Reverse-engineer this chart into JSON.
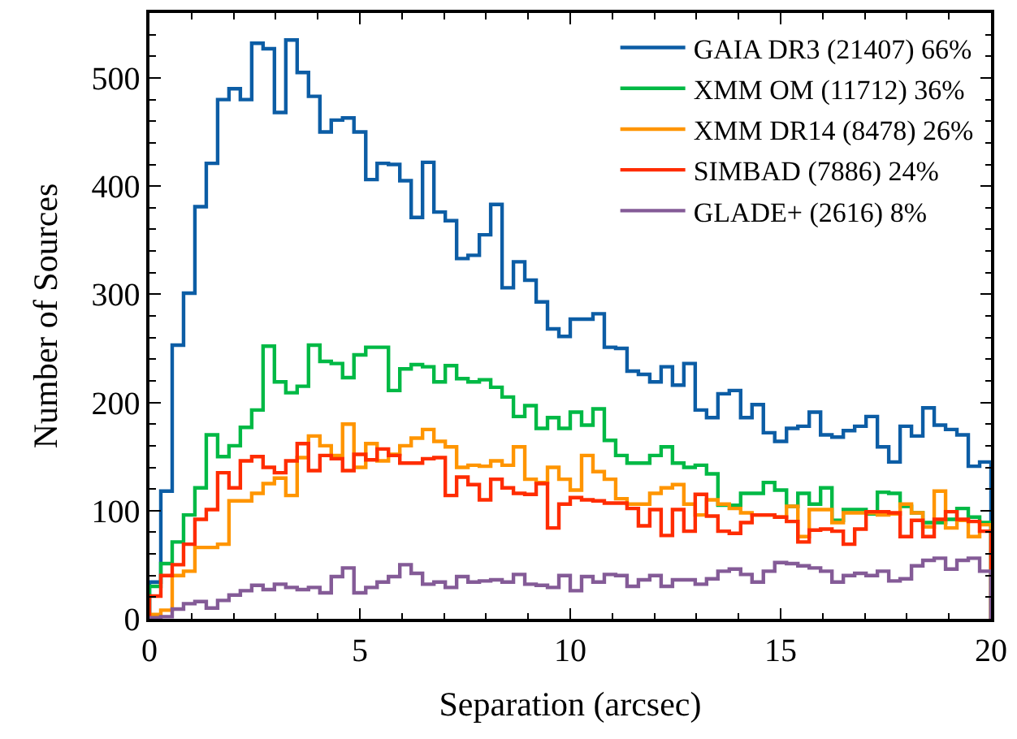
{
  "chart_data": {
    "type": "histogram",
    "xlabel": "Separation (arcsec)",
    "ylabel": "Number of Sources",
    "bins": [
      0,
      0.27,
      0.54,
      0.81,
      1.08,
      1.35,
      1.62,
      1.89,
      2.16,
      2.43,
      2.7,
      2.97,
      3.24,
      3.51,
      3.78,
      4.05,
      4.32,
      4.59,
      4.86,
      5.14,
      5.41,
      5.68,
      5.95,
      6.22,
      6.49,
      6.76,
      7.03,
      7.3,
      7.57,
      7.84,
      8.11,
      8.38,
      8.65,
      8.92,
      9.19,
      9.46,
      9.73,
      10.0,
      10.27,
      10.54,
      10.81,
      11.08,
      11.35,
      11.62,
      11.89,
      12.16,
      12.43,
      12.7,
      12.97,
      13.24,
      13.51,
      13.78,
      14.05,
      14.32,
      14.59,
      14.86,
      15.14,
      15.41,
      15.68,
      15.95,
      16.22,
      16.49,
      16.76,
      17.03,
      17.3,
      17.57,
      17.84,
      18.11,
      18.38,
      18.65,
      18.92,
      19.19,
      19.46,
      19.73,
      20.0
    ],
    "series": [
      {
        "name": "GAIA DR3 (21407) 66%",
        "color": "#0c5da5",
        "values": [
          34,
          118,
          253,
          301,
          381,
          421,
          480,
          490,
          480,
          532,
          527,
          468,
          535,
          505,
          483,
          450,
          461,
          463,
          450,
          406,
          421,
          420,
          405,
          371,
          422,
          376,
          368,
          333,
          336,
          355,
          383,
          306,
          330,
          313,
          293,
          268,
          261,
          277,
          277,
          282,
          251,
          250,
          229,
          226,
          219,
          233,
          216,
          236,
          193,
          186,
          208,
          211,
          186,
          198,
          172,
          164,
          176,
          178,
          191,
          170,
          168,
          174,
          178,
          187,
          159,
          145,
          178,
          169,
          195,
          179,
          175,
          170,
          141,
          145
        ]
      },
      {
        "name": "XMM OM (11712) 36%",
        "color": "#00b945",
        "values": [
          30,
          51,
          71,
          96,
          121,
          170,
          150,
          160,
          177,
          193,
          252,
          219,
          209,
          215,
          253,
          238,
          236,
          223,
          244,
          251,
          251,
          211,
          231,
          235,
          233,
          219,
          234,
          222,
          219,
          221,
          214,
          205,
          187,
          197,
          176,
          186,
          176,
          191,
          179,
          194,
          165,
          151,
          144,
          144,
          151,
          159,
          144,
          140,
          142,
          134,
          105,
          105,
          116,
          116,
          126,
          119,
          104,
          116,
          106,
          121,
          91,
          101,
          101,
          97,
          117,
          116,
          104,
          98,
          89,
          89,
          92,
          102,
          94,
          89
        ]
      },
      {
        "name": "XMM DR14 (8478) 26%",
        "color": "#ff9500",
        "values": [
          4,
          8,
          40,
          44,
          66,
          66,
          69,
          109,
          109,
          116,
          125,
          130,
          114,
          149,
          169,
          160,
          151,
          180,
          140,
          162,
          146,
          152,
          160,
          167,
          175,
          164,
          159,
          140,
          142,
          141,
          146,
          142,
          159,
          129,
          126,
          140,
          129,
          119,
          151,
          136,
          129,
          111,
          106,
          106,
          116,
          121,
          124,
          106,
          96,
          110,
          106,
          102,
          98,
          96,
          96,
          94,
          104,
          76,
          101,
          101,
          89,
          98,
          98,
          98,
          96,
          97,
          106,
          98,
          85,
          118,
          84,
          91,
          76,
          87
        ]
      },
      {
        "name": "SIMBAD (7886) 24%",
        "color": "#ff2c00",
        "values": [
          21,
          40,
          50,
          69,
          92,
          101,
          135,
          121,
          146,
          150,
          140,
          135,
          146,
          162,
          137,
          151,
          148,
          137,
          152,
          147,
          157,
          151,
          144,
          144,
          148,
          149,
          114,
          131,
          124,
          110,
          129,
          121,
          116,
          115,
          125,
          84,
          106,
          112,
          110,
          109,
          107,
          107,
          102,
          86,
          101,
          77,
          101,
          81,
          115,
          95,
          81,
          79,
          89,
          96,
          96,
          94,
          90,
          71,
          82,
          83,
          81,
          69,
          83,
          99,
          99,
          98,
          76,
          91,
          76,
          92,
          99,
          92,
          90,
          81
        ]
      },
      {
        "name": "GLADE+ (2616) 8%",
        "color": "#845b97",
        "values": [
          1,
          2,
          9,
          14,
          16,
          10,
          17,
          22,
          26,
          31,
          27,
          32,
          29,
          27,
          29,
          24,
          39,
          47,
          24,
          29,
          34,
          39,
          50,
          42,
          32,
          34,
          29,
          39,
          34,
          35,
          36,
          34,
          41,
          32,
          31,
          29,
          40,
          26,
          39,
          34,
          41,
          40,
          30,
          36,
          40,
          30,
          36,
          36,
          32,
          37,
          44,
          46,
          41,
          34,
          44,
          52,
          51,
          49,
          47,
          44,
          34,
          40,
          42,
          40,
          44,
          35,
          37,
          49,
          54,
          56,
          46,
          54,
          56,
          44
        ]
      }
    ],
    "xlim": [
      0,
      20
    ],
    "xticks": [
      0,
      5,
      10,
      15,
      20
    ],
    "ylim": [
      0,
      560
    ],
    "yticks": [
      0,
      100,
      200,
      300,
      400,
      500
    ],
    "legend": "top right"
  }
}
